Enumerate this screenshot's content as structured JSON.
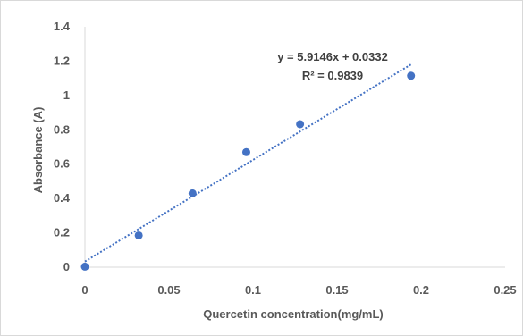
{
  "chart_data": {
    "type": "scatter",
    "xlabel": "Quercetin concentration(mg/mL)",
    "ylabel": "Absorbance (A)",
    "xlim": [
      0,
      0.25
    ],
    "ylim": [
      0,
      1.4
    ],
    "x_ticks": [
      0,
      0.05,
      0.1,
      0.15,
      0.2,
      0.25
    ],
    "x_tick_labels": [
      "0",
      "0.05",
      "0.1",
      "0.15",
      "0.2",
      "0.25"
    ],
    "y_ticks": [
      0,
      0.2,
      0.4,
      0.6,
      0.8,
      1,
      1.2,
      1.4
    ],
    "y_tick_labels": [
      "0",
      "0.2",
      "0.4",
      "0.6",
      "0.8",
      "1",
      "1.2",
      "1.4"
    ],
    "grid": false,
    "series": [
      {
        "x": [
          0,
          0.032,
          0.064,
          0.096,
          0.128,
          0.194
        ],
        "y": [
          0.003,
          0.185,
          0.43,
          0.67,
          0.833,
          1.115
        ],
        "color": "#4472c4"
      }
    ],
    "trendline": {
      "type": "linear",
      "slope": 5.9146,
      "intercept": 0.0332,
      "x_range": [
        0,
        0.194
      ],
      "style": "dotted",
      "color": "#4472c4",
      "equation_label": "y = 5.9146x + 0.0332",
      "r2_label": "R² = 0.9839"
    }
  }
}
